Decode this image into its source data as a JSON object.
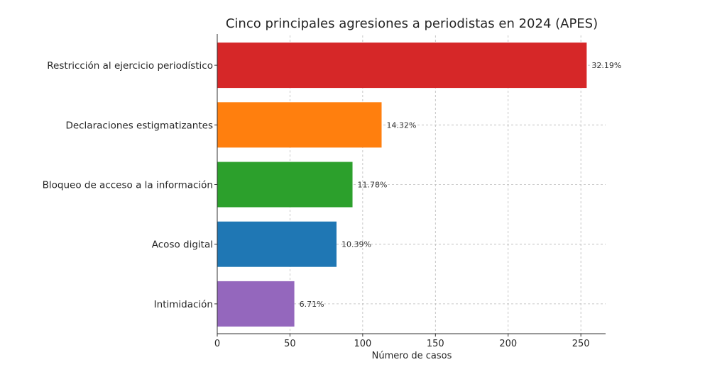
{
  "chart_data": {
    "type": "bar",
    "orientation": "horizontal",
    "title": "Cinco principales agresiones a periodistas en 2024 (APES)",
    "xlabel": "Número de casos",
    "ylabel": "",
    "xlim": [
      0,
      267
    ],
    "xticks": [
      0,
      50,
      100,
      150,
      200,
      250
    ],
    "grid": true,
    "categories": [
      "Restricción al ejercicio periodístico",
      "Declaraciones estigmatizantes",
      "Bloqueo de acceso a la información",
      "Acoso digital",
      "Intimidación"
    ],
    "values": [
      254,
      113,
      93,
      82,
      53
    ],
    "data_labels": [
      "32.19%",
      "14.32%",
      "11.78%",
      "10.39%",
      "6.71%"
    ],
    "colors": [
      "#d62728",
      "#ff7f0e",
      "#2ca02c",
      "#1f77b4",
      "#9467bd"
    ]
  }
}
